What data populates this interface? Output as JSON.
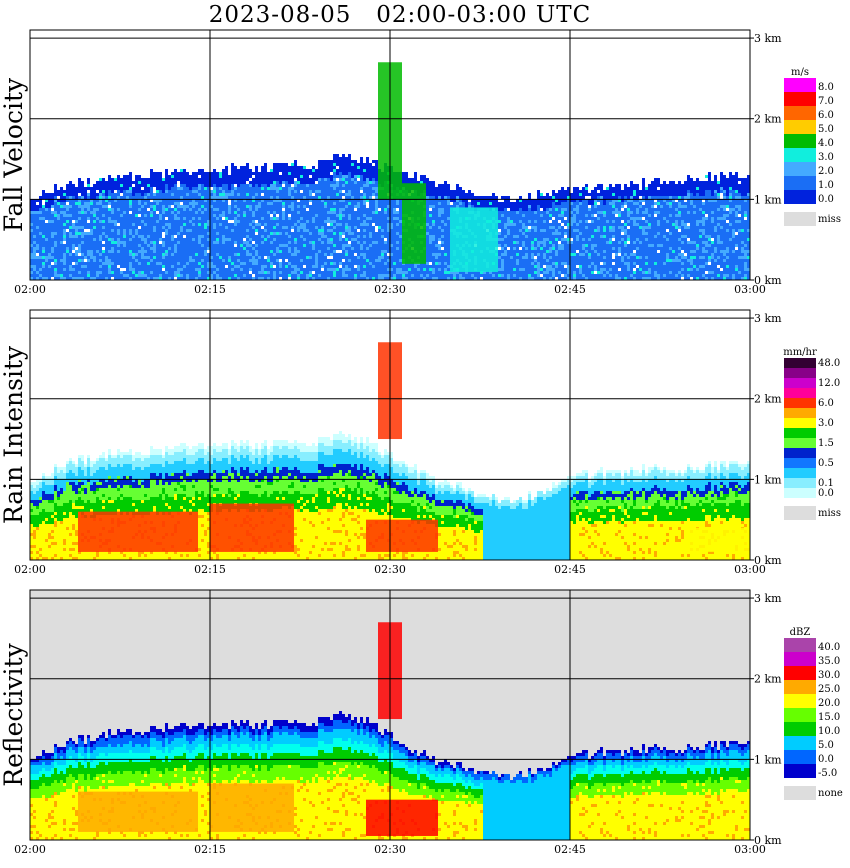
{
  "title": "2023-08-05   02:00-03:00 UTC",
  "colors": {
    "fall_velocity": [
      "#0022dd",
      "#1a6ef5",
      "#44aaff",
      "#11eedd",
      "#00bb00",
      "#88ee00",
      "#ffcc00",
      "#ff6600",
      "#ff0000",
      "#ff00ff"
    ],
    "rain_intensity": [
      "#ccffff",
      "#88eeff",
      "#22ccff",
      "#1177ff",
      "#0022cc",
      "#66ff33",
      "#00cc00",
      "#ffff00",
      "#ffaa00",
      "#ff3300",
      "#ff0099",
      "#cc00cc",
      "#880088",
      "#330033"
    ],
    "reflectivity": [
      "#0000cc",
      "#0066ff",
      "#00ccff",
      "#00ffee",
      "#00cc00",
      "#66ff00",
      "#ffff00",
      "#ffaa00",
      "#ff6600",
      "#ff0000",
      "#cc00cc",
      "#aa44aa"
    ],
    "missing": "#dddddd"
  },
  "chart_data": [
    {
      "type": "heatmap",
      "ylabel": "Fall Velocity",
      "unit": "m/s",
      "x_ticks": [
        "02:00",
        "02:15",
        "02:30",
        "02:45",
        "03:00"
      ],
      "y_ticks": [
        "0 km",
        "1 km",
        "2 km",
        "3 km"
      ],
      "xlim": [
        "02:00",
        "03:00"
      ],
      "ylim": [
        0,
        3.1
      ],
      "grid": true,
      "legend": [
        "8.0",
        "7.0",
        "6.0",
        "5.0",
        "4.0",
        "3.0",
        "2.0",
        "1.0",
        "0.0"
      ],
      "missing_label": "miss",
      "echo_top_km": [
        1.05,
        1.15,
        1.2,
        1.25,
        1.3,
        1.32,
        1.35,
        1.35,
        1.38,
        1.4,
        1.4,
        1.42,
        1.45,
        1.55,
        1.5,
        1.38,
        1.3,
        1.22,
        1.12,
        1.05,
        1.02,
        1.05,
        1.1,
        1.12,
        1.15,
        1.2,
        1.22,
        1.25,
        1.28,
        1.3,
        1.3
      ],
      "cells": [
        {
          "t0": "02:29",
          "t1": "02:31",
          "z0": 1.0,
          "z1": 2.7,
          "level": "4.0"
        },
        {
          "t0": "02:31",
          "t1": "02:33",
          "z0": 0.2,
          "z1": 1.2,
          "level": "4.0"
        },
        {
          "t0": "02:35",
          "t1": "02:39",
          "z0": 0.1,
          "z1": 0.9,
          "level": "3.0"
        }
      ]
    },
    {
      "type": "heatmap",
      "ylabel": "Rain Intensity",
      "unit": "mm/hr",
      "x_ticks": [
        "02:00",
        "02:15",
        "02:30",
        "02:45",
        "03:00"
      ],
      "y_ticks": [
        "0 km",
        "1 km",
        "2 km",
        "3 km"
      ],
      "xlim": [
        "02:00",
        "03:00"
      ],
      "ylim": [
        0,
        3.1
      ],
      "grid": true,
      "legend": [
        "48.0",
        "",
        "12.0",
        "",
        "6.0",
        "",
        "3.0",
        "",
        "1.5",
        "",
        "0.5",
        "",
        "0.1",
        "0.0"
      ],
      "missing_label": "miss",
      "echo_top_km": [
        1.0,
        1.15,
        1.25,
        1.3,
        1.35,
        1.35,
        1.4,
        1.42,
        1.45,
        1.45,
        1.45,
        1.45,
        1.48,
        1.55,
        1.5,
        1.3,
        1.15,
        1.0,
        0.9,
        0.8,
        0.75,
        0.8,
        0.95,
        1.05,
        1.1,
        1.12,
        1.15,
        1.15,
        1.18,
        1.2,
        1.25
      ],
      "cells": [
        {
          "t0": "02:04",
          "t1": "02:14",
          "z0": 0.1,
          "z1": 0.6,
          "level": "6.0"
        },
        {
          "t0": "02:15",
          "t1": "02:22",
          "z0": 0.1,
          "z1": 0.7,
          "level": "6.0"
        },
        {
          "t0": "02:29",
          "t1": "02:31",
          "z0": 1.5,
          "z1": 2.7,
          "level": "6.0"
        },
        {
          "t0": "02:28",
          "t1": "02:34",
          "z0": 0.1,
          "z1": 0.5,
          "level": "6.0"
        },
        {
          "t0": "02:55",
          "t1": "03:00",
          "z0": 0.1,
          "z1": 0.4,
          "level": "3.0"
        }
      ]
    },
    {
      "type": "heatmap",
      "ylabel": "Reflectivity",
      "unit": "dBZ",
      "x_ticks": [
        "02:00",
        "02:15",
        "02:30",
        "02:45",
        "03:00"
      ],
      "y_ticks": [
        "0 km",
        "1 km",
        "2 km",
        "3 km"
      ],
      "xlim": [
        "02:00",
        "03:00"
      ],
      "ylim": [
        0,
        3.1
      ],
      "grid": true,
      "legend": [
        "40.0",
        "35.0",
        "30.0",
        "25.0",
        "20.0",
        "15.0",
        "10.0",
        "5.0",
        "0.0",
        "-5.0"
      ],
      "missing_label": "none",
      "echo_top_km": [
        1.05,
        1.15,
        1.25,
        1.3,
        1.35,
        1.38,
        1.4,
        1.42,
        1.45,
        1.45,
        1.45,
        1.45,
        1.48,
        1.55,
        1.5,
        1.3,
        1.1,
        1.0,
        0.9,
        0.85,
        0.8,
        0.85,
        0.95,
        1.05,
        1.1,
        1.12,
        1.15,
        1.15,
        1.18,
        1.2,
        1.25
      ],
      "cells": [
        {
          "t0": "02:04",
          "t1": "02:14",
          "z0": 0.1,
          "z1": 0.6,
          "level": "25.0"
        },
        {
          "t0": "02:15",
          "t1": "02:22",
          "z0": 0.1,
          "z1": 0.7,
          "level": "25.0"
        },
        {
          "t0": "02:29",
          "t1": "02:31",
          "z0": 1.5,
          "z1": 2.7,
          "level": "30.0"
        },
        {
          "t0": "02:28",
          "t1": "02:34",
          "z0": 0.05,
          "z1": 0.5,
          "level": "30.0"
        }
      ]
    }
  ]
}
